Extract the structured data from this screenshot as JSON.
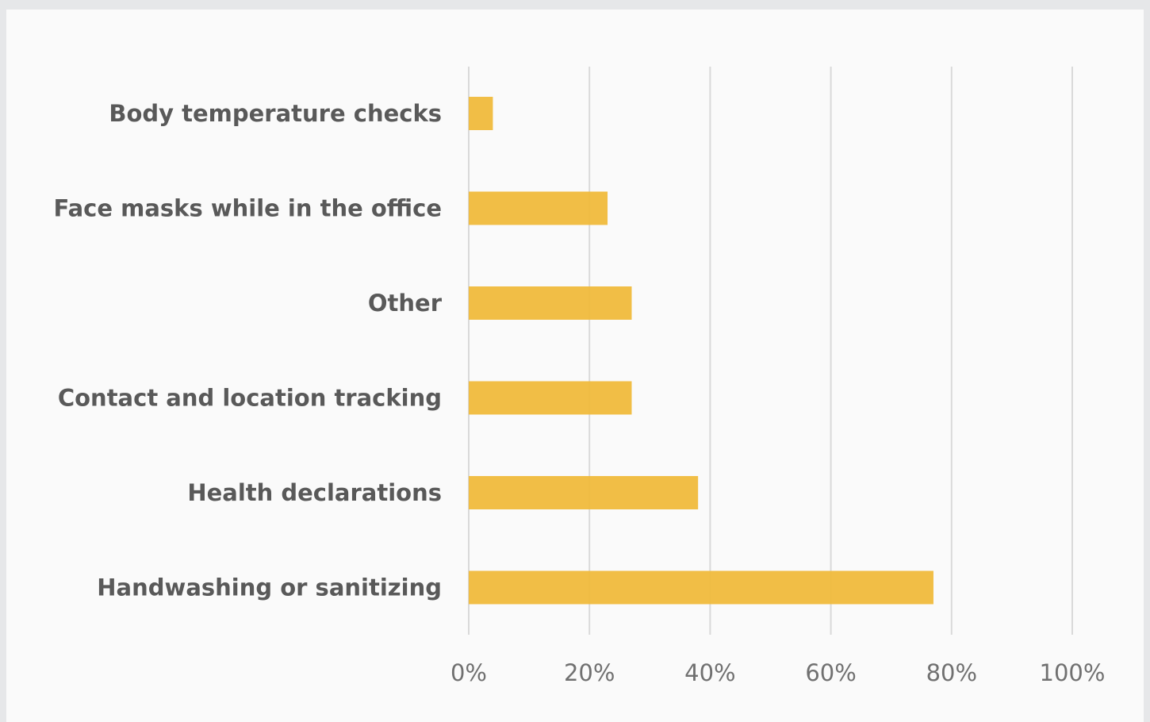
{
  "chart_data": {
    "type": "bar",
    "orientation": "horizontal",
    "categories": [
      "Body temperature checks",
      "Face masks while in the office",
      "Other",
      "Contact and location tracking",
      "Health declarations",
      "Handwashing or sanitizing"
    ],
    "values": [
      4,
      23,
      27,
      27,
      38,
      77
    ],
    "xlim": [
      0,
      100
    ],
    "x_ticks": [
      0,
      20,
      40,
      60,
      80,
      100
    ],
    "x_tick_labels": [
      "0%",
      "20%",
      "40%",
      "60%",
      "80%",
      "100%"
    ],
    "grid": "vertical",
    "bar_color": "#f0bb3c",
    "title": "",
    "xlabel": "",
    "ylabel": ""
  }
}
